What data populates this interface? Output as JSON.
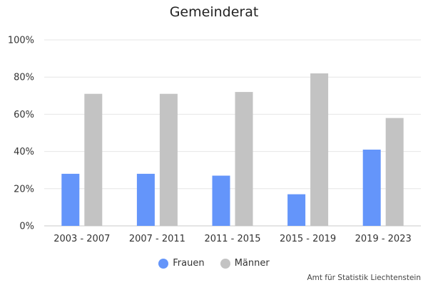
{
  "chart_data": {
    "type": "bar",
    "title": "Gemeinderat",
    "categories": [
      "2003 - 2007",
      "2007 - 2011",
      "2011 - 2015",
      "2015 - 2019",
      "2019 - 2023"
    ],
    "series": [
      {
        "name": "Frauen",
        "color": "#6495fa",
        "values": [
          28,
          28,
          27,
          17,
          41
        ]
      },
      {
        "name": "Männer",
        "color": "#c3c3c3",
        "values": [
          71,
          71,
          72,
          82,
          58
        ]
      }
    ],
    "ylim": [
      0,
      100
    ],
    "yticks": [
      0,
      20,
      40,
      60,
      80,
      100
    ],
    "ytick_labels": [
      "0%",
      "20%",
      "40%",
      "60%",
      "80%",
      "100%"
    ],
    "xlabel": "",
    "ylabel": "",
    "grid": true,
    "legend_position": "bottom"
  },
  "credit": "Amt für Statistik Liechtenstein"
}
